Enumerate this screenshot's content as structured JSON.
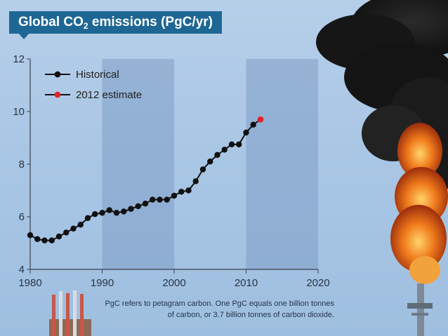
{
  "title": {
    "prefix": "Global CO",
    "subscript": "2",
    "suffix": " emissions (PgC/yr)"
  },
  "footnote": {
    "line1": "PgC refers to petagram carbon. One PgC equals one billion tonnes",
    "line2": "of carbon, or 3.7 billion tonnes of carbon dioxide."
  },
  "chart_data": {
    "type": "line",
    "title": "Global CO2 emissions (PgC/yr)",
    "xlim": [
      1980,
      2020
    ],
    "ylim": [
      4,
      12
    ],
    "xticks": [
      1980,
      1990,
      2000,
      2010,
      2020
    ],
    "yticks": [
      4,
      6,
      8,
      10,
      12
    ],
    "shaded_bands": [
      [
        1990,
        2000
      ],
      [
        2010,
        2020
      ]
    ],
    "legend": {
      "placement": "top-left",
      "entries": [
        "Historical",
        "2012 estimate"
      ]
    },
    "series": [
      {
        "name": "Historical",
        "color": "#111111",
        "x": [
          1980,
          1981,
          1982,
          1983,
          1984,
          1985,
          1986,
          1987,
          1988,
          1989,
          1990,
          1991,
          1992,
          1993,
          1994,
          1995,
          1996,
          1997,
          1998,
          1999,
          2000,
          2001,
          2002,
          2003,
          2004,
          2005,
          2006,
          2007,
          2008,
          2009,
          2010,
          2011
        ],
        "y": [
          5.3,
          5.15,
          5.1,
          5.1,
          5.25,
          5.4,
          5.55,
          5.7,
          5.95,
          6.1,
          6.15,
          6.25,
          6.15,
          6.2,
          6.3,
          6.4,
          6.5,
          6.65,
          6.65,
          6.65,
          6.8,
          6.95,
          7.0,
          7.35,
          7.8,
          8.1,
          8.35,
          8.55,
          8.75,
          8.75,
          9.2,
          9.5
        ]
      },
      {
        "name": "2012 estimate",
        "color": "#e0242a",
        "x": [
          2012
        ],
        "y": [
          9.7
        ]
      }
    ]
  }
}
